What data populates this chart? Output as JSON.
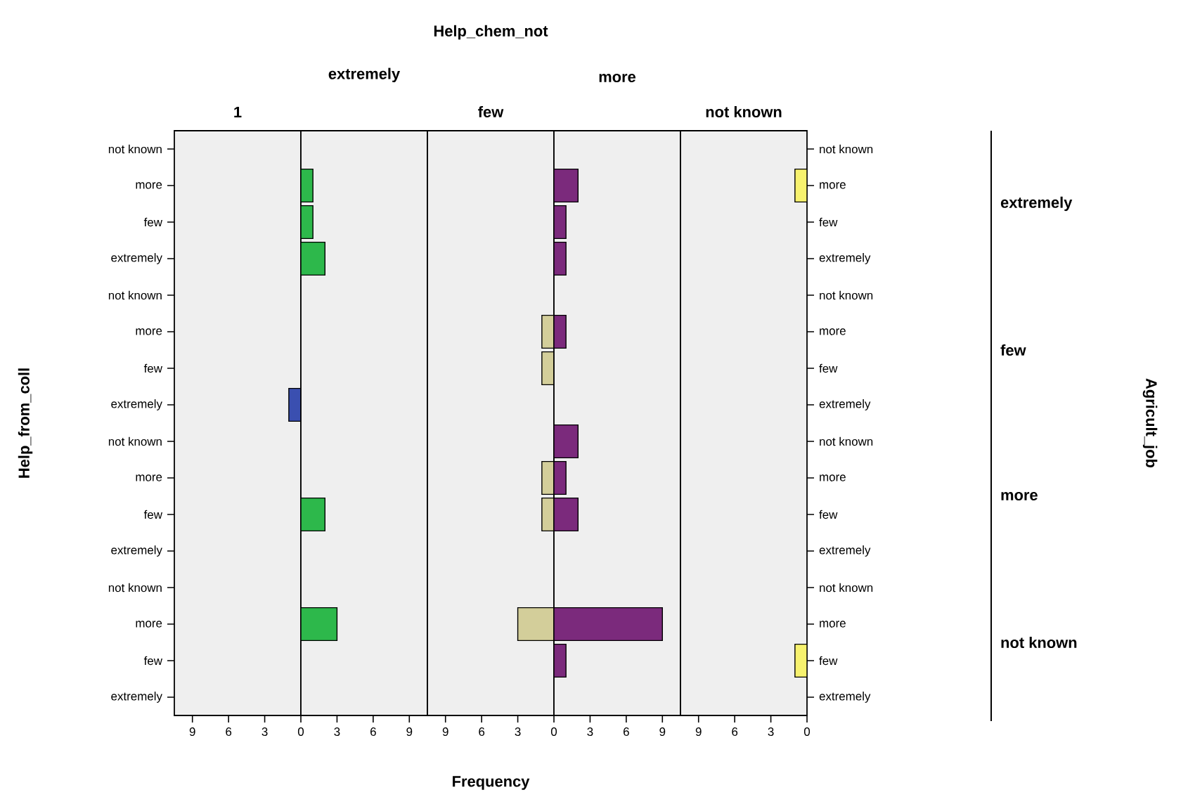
{
  "chart_data": [
    {
      "type": "bar",
      "orientation": "horizontal",
      "title": "1",
      "ylabel": "Help_from_coll",
      "categories": [
        "not known",
        "more",
        "few",
        "extremely",
        "not known",
        "more",
        "few",
        "extremely",
        "not known",
        "more",
        "few",
        "extremely",
        "not known",
        "more",
        "few",
        "extremely"
      ],
      "values": [
        null,
        null,
        null,
        null,
        null,
        null,
        null,
        1,
        null,
        null,
        null,
        null,
        null,
        null,
        null,
        null
      ],
      "color": "#3a4fb0",
      "xlim": [
        10.5,
        0
      ],
      "xticks": [
        9,
        6,
        3,
        0
      ]
    },
    {
      "type": "bar",
      "orientation": "horizontal",
      "title": "extremely",
      "categories": [
        null,
        null,
        null,
        null,
        null,
        null,
        null,
        null,
        null,
        null,
        null,
        null,
        null,
        null,
        null,
        null
      ],
      "values": [
        null,
        1,
        1,
        2,
        null,
        null,
        null,
        null,
        null,
        null,
        2,
        null,
        null,
        3,
        null,
        null
      ],
      "color": "#2db84b",
      "xlim": [
        0,
        10.5
      ],
      "xticks": [
        3,
        6,
        9
      ],
      "tick_labels": "x"
    },
    {
      "type": "bar",
      "orientation": "horizontal",
      "title": "few",
      "xlabel": "Frequency",
      "annotations": [
        "Help_chem_not"
      ],
      "categories": [
        null,
        null,
        null,
        null,
        null,
        null,
        null,
        null,
        null,
        null,
        null,
        null,
        null,
        null,
        null,
        null
      ],
      "values": [
        null,
        null,
        null,
        null,
        null,
        1,
        1,
        null,
        null,
        1,
        1,
        null,
        null,
        3,
        null,
        null
      ],
      "color": "#d3ce9a",
      "xlim": [
        10.5,
        0
      ],
      "xticks": [
        9,
        6,
        3,
        0
      ],
      "tick_labels": "x"
    },
    {
      "type": "bar",
      "orientation": "horizontal",
      "title": "more",
      "categories": [
        null,
        null,
        null,
        null,
        null,
        null,
        null,
        null,
        null,
        null,
        null,
        null,
        null,
        null,
        null,
        null
      ],
      "values": [
        null,
        2,
        1,
        1,
        null,
        1,
        null,
        null,
        2,
        1,
        2,
        null,
        null,
        9,
        1,
        null
      ],
      "color": "#7b2a7c",
      "xlim": [
        0,
        10.5
      ],
      "xticks": [
        3,
        6,
        9
      ],
      "tick_labels": "x"
    },
    {
      "type": "bar",
      "orientation": "horizontal",
      "title": "not known",
      "y2label": "Agricult_job",
      "annotations": [
        "extremely",
        "few",
        "more",
        "not known"
      ],
      "categories": [
        "not known",
        "more",
        "few",
        "extremely",
        "not known",
        "more",
        "few",
        "extremely",
        "not known",
        "more",
        "few",
        "extremely",
        "not known",
        "more",
        "few",
        "extremely"
      ],
      "values": [
        null,
        1,
        null,
        null,
        null,
        null,
        null,
        null,
        null,
        null,
        null,
        null,
        null,
        null,
        1,
        null
      ],
      "color": "#f7f26e",
      "xlim": [
        10.5,
        0
      ],
      "xticks": [
        9,
        6,
        3,
        0
      ]
    }
  ]
}
